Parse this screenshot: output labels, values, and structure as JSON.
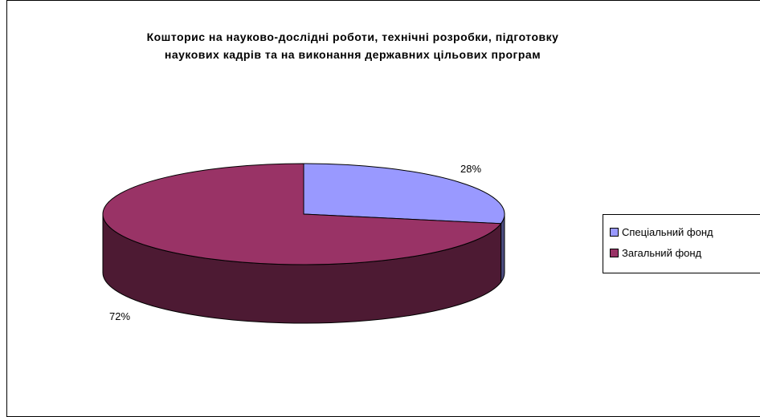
{
  "chart_data": {
    "type": "pie",
    "title_lines": [
      "Кошторис на науково-дослідні роботи, технічні розробки, підготовку",
      "наукових кадрів та на виконання державних цільових програм"
    ],
    "slices": [
      {
        "name": "Спеціальний фонд",
        "value": 28,
        "label": "28%",
        "color": "#9999ff",
        "side_color": "#4c4c80"
      },
      {
        "name": "Загальний фонд",
        "value": 72,
        "label": "72%",
        "color": "#993366",
        "side_color": "#4d1a33"
      }
    ],
    "legend_position": "right",
    "style": "3d"
  }
}
